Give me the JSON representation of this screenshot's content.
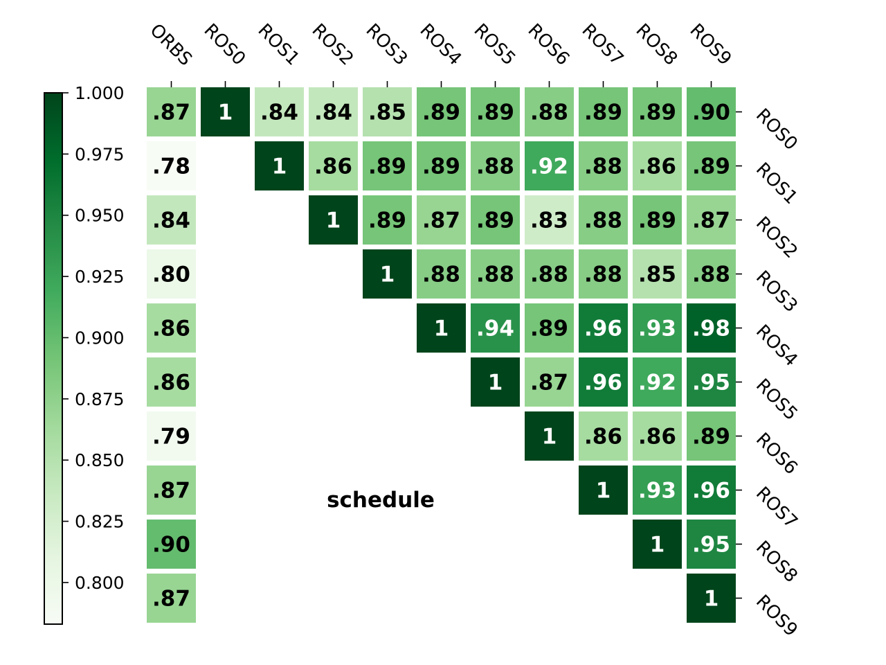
{
  "chart_data": {
    "type": "heatmap",
    "title": "schedule",
    "columns": [
      "ORBS",
      "ROS0",
      "ROS1",
      "ROS2",
      "ROS3",
      "ROS4",
      "ROS5",
      "ROS6",
      "ROS7",
      "ROS8",
      "ROS9"
    ],
    "rows": [
      "ROS0",
      "ROS1",
      "ROS2",
      "ROS3",
      "ROS4",
      "ROS5",
      "ROS6",
      "ROS7",
      "ROS8",
      "ROS9"
    ],
    "values": [
      [
        0.87,
        1,
        0.84,
        0.84,
        0.85,
        0.89,
        0.89,
        0.88,
        0.89,
        0.89,
        0.9
      ],
      [
        0.78,
        null,
        1,
        0.86,
        0.89,
        0.89,
        0.88,
        0.92,
        0.88,
        0.86,
        0.89
      ],
      [
        0.84,
        null,
        null,
        1,
        0.89,
        0.87,
        0.89,
        0.83,
        0.88,
        0.89,
        0.87
      ],
      [
        0.8,
        null,
        null,
        null,
        1,
        0.88,
        0.88,
        0.88,
        0.88,
        0.85,
        0.88
      ],
      [
        0.86,
        null,
        null,
        null,
        null,
        1,
        0.94,
        0.89,
        0.96,
        0.93,
        0.98
      ],
      [
        0.86,
        null,
        null,
        null,
        null,
        null,
        1,
        0.87,
        0.96,
        0.92,
        0.95
      ],
      [
        0.79,
        null,
        null,
        null,
        null,
        null,
        null,
        1,
        0.86,
        0.86,
        0.89
      ],
      [
        0.87,
        null,
        null,
        null,
        null,
        null,
        null,
        null,
        1,
        0.93,
        0.96
      ],
      [
        0.9,
        null,
        null,
        null,
        null,
        null,
        null,
        null,
        null,
        1,
        0.95
      ],
      [
        0.87,
        null,
        null,
        null,
        null,
        null,
        null,
        null,
        null,
        null,
        1
      ]
    ],
    "labels": [
      [
        ".87",
        "1",
        ".84",
        ".84",
        ".85",
        ".89",
        ".89",
        ".88",
        ".89",
        ".89",
        ".90"
      ],
      [
        ".78",
        "",
        "1",
        ".86",
        ".89",
        ".89",
        ".88",
        ".92",
        ".88",
        ".86",
        ".89"
      ],
      [
        ".84",
        "",
        "",
        "1",
        ".89",
        ".87",
        ".89",
        ".83",
        ".88",
        ".89",
        ".87"
      ],
      [
        ".80",
        "",
        "",
        "",
        "1",
        ".88",
        ".88",
        ".88",
        ".88",
        ".85",
        ".88"
      ],
      [
        ".86",
        "",
        "",
        "",
        "",
        "1",
        ".94",
        ".89",
        ".96",
        ".93",
        ".98"
      ],
      [
        ".86",
        "",
        "",
        "",
        "",
        "",
        "1",
        ".87",
        ".96",
        ".92",
        ".95"
      ],
      [
        ".79",
        "",
        "",
        "",
        "",
        "",
        "",
        "1",
        ".86",
        ".86",
        ".89"
      ],
      [
        ".87",
        "",
        "",
        "",
        "",
        "",
        "",
        "",
        "1",
        ".93",
        ".96"
      ],
      [
        ".90",
        "",
        "",
        "",
        "",
        "",
        "",
        "",
        "",
        "1",
        ".95"
      ],
      [
        ".87",
        "",
        "",
        "",
        "",
        "",
        "",
        "",
        "",
        "",
        "1"
      ]
    ],
    "colorscale": "Greens",
    "vmin": 0.783,
    "vmax": 1.0,
    "colorbar_ticks": [
      1.0,
      0.975,
      0.95,
      0.925,
      0.9,
      0.875,
      0.85,
      0.825,
      0.8
    ],
    "colorbar_tick_labels": [
      "1.000",
      "0.975",
      "0.950",
      "0.925",
      "0.900",
      "0.875",
      "0.850",
      "0.825",
      "0.800"
    ],
    "colorbar_placement": "left",
    "x_tick_position": "top",
    "y_tick_position": "right"
  }
}
